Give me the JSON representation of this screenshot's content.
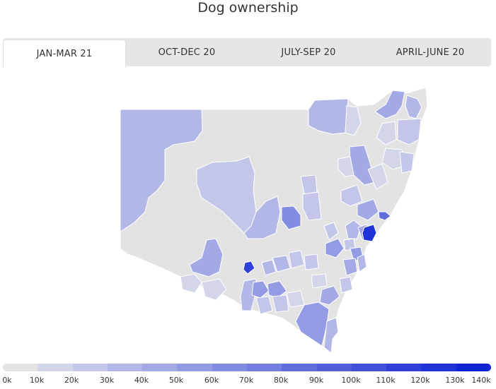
{
  "title": "Dog ownership",
  "tabs": [
    {
      "label": "JAN-MAR 21",
      "active": true
    },
    {
      "label": "OCT-DEC 20",
      "active": false
    },
    {
      "label": "JULY-SEP 20",
      "active": false
    },
    {
      "label": "APRIL-JUNE 20",
      "active": false
    }
  ],
  "legend": {
    "labels": [
      "0k",
      "10k",
      "20k",
      "30k",
      "40k",
      "50k",
      "60k",
      "70k",
      "80k",
      "90k",
      "100k",
      "110k",
      "120k",
      "130k",
      "140k"
    ],
    "colors": [
      "#e3e3e3",
      "#d3d5e8",
      "#c3c6e9",
      "#b2b7e7",
      "#a2a9e5",
      "#929be3",
      "#828ce1",
      "#727ddf",
      "#616ddd",
      "#515fdb",
      "#4150d9",
      "#3141d7",
      "#2033d6",
      "#1024d4",
      "#0015d2"
    ]
  },
  "colors": {
    "border": "#ffffff"
  }
}
